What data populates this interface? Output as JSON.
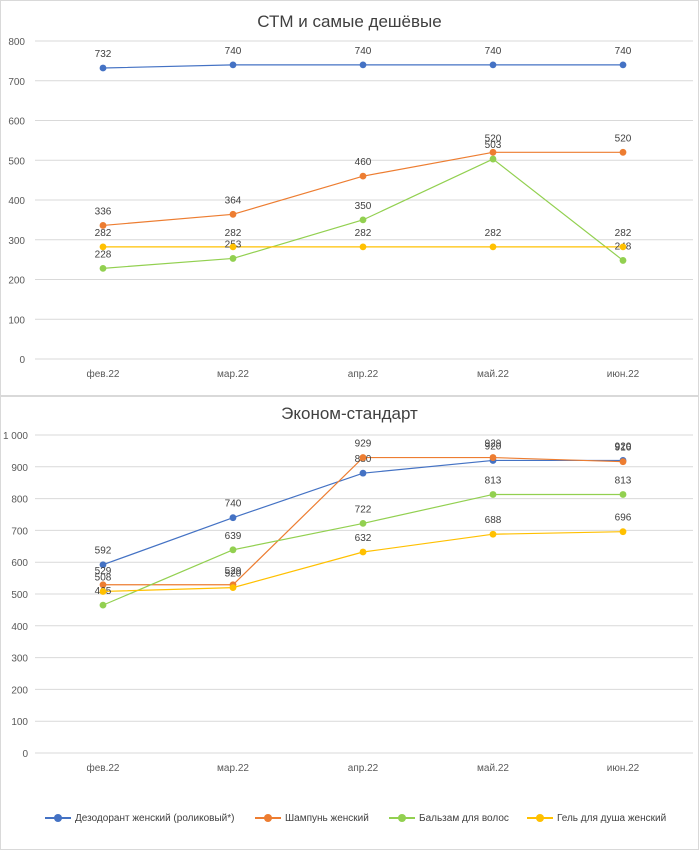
{
  "chart_data": [
    {
      "type": "line",
      "title": "СТМ и самые дешёвые",
      "categories": [
        "фев.22",
        "мар.22",
        "апр.22",
        "май.22",
        "июн.22"
      ],
      "ylim": [
        0,
        800
      ],
      "yticks": [
        0,
        100,
        200,
        300,
        400,
        500,
        600,
        700,
        800
      ],
      "ytick_labels": [
        "0",
        "100",
        "200",
        "300",
        "400",
        "500",
        "600",
        "700",
        "800"
      ],
      "grid": true,
      "series": [
        {
          "name": "Дезодорант женский (роликовый*)",
          "color": "#4472c4",
          "values": [
            732,
            740,
            740,
            740,
            740
          ]
        },
        {
          "name": "Шампунь женский",
          "color": "#ed7d31",
          "values": [
            336,
            364,
            460,
            520,
            520
          ]
        },
        {
          "name": "Бальзам для волос",
          "color": "#92d050",
          "values": [
            228,
            253,
            350,
            503,
            248
          ]
        },
        {
          "name": "Гель для душа женский",
          "color": "#ffc000",
          "values": [
            282,
            282,
            282,
            282,
            282
          ]
        }
      ]
    },
    {
      "type": "line",
      "title": "Эконом-стандарт",
      "categories": [
        "фев.22",
        "мар.22",
        "апр.22",
        "май.22",
        "июн.22"
      ],
      "ylim": [
        0,
        1000
      ],
      "yticks": [
        0,
        100,
        200,
        300,
        400,
        500,
        600,
        700,
        800,
        900,
        1000
      ],
      "ytick_labels": [
        "0",
        "100",
        "200",
        "300",
        "400",
        "500",
        "600",
        "700",
        "800",
        "900",
        "1 000"
      ],
      "grid": true,
      "legend": "bottom",
      "series": [
        {
          "name": "Дезодорант женский (роликовый*)",
          "color": "#4472c4",
          "values": [
            592,
            740,
            880,
            920,
            920
          ]
        },
        {
          "name": "Шампунь женский",
          "color": "#ed7d31",
          "values": [
            529,
            529,
            929,
            929,
            916
          ]
        },
        {
          "name": "Бальзам для волос",
          "color": "#92d050",
          "values": [
            465,
            639,
            722,
            813,
            813
          ]
        },
        {
          "name": "Гель для душа женский",
          "color": "#ffc000",
          "values": [
            508,
            520,
            632,
            688,
            696
          ]
        }
      ]
    }
  ]
}
